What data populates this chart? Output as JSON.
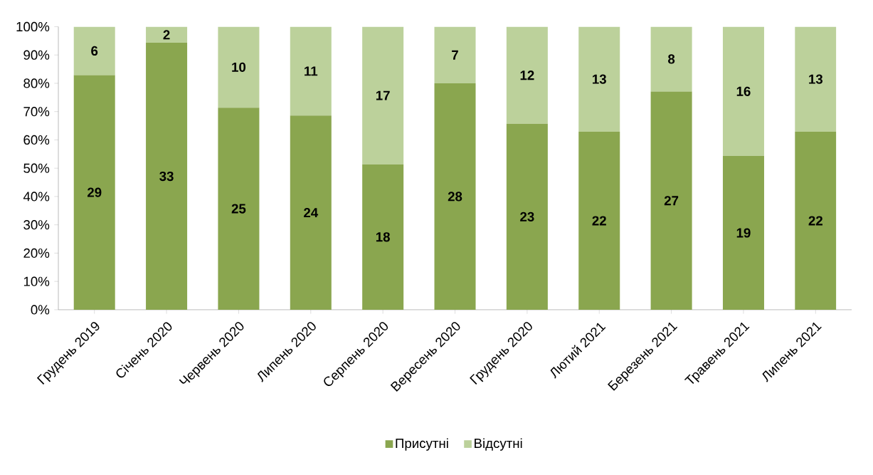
{
  "chart_data": {
    "type": "bar",
    "stacked": true,
    "categories": [
      "Грудень 2019",
      "Січень 2020",
      "Червень 2020",
      "Липень 2020",
      "Серпень 2020",
      "Вересень 2020",
      "Грудень 2020",
      "Лютий 2021",
      "Березень 2021",
      "Травень 2021",
      "Липень 2021"
    ],
    "series": [
      {
        "name": "Присутні",
        "color": "#8aa64f",
        "values": [
          82.9,
          94.3,
          71.4,
          68.6,
          51.4,
          80.0,
          65.7,
          62.9,
          77.1,
          54.3,
          62.9
        ]
      },
      {
        "name": "Відсутні",
        "color": "#bcd19b",
        "values": [
          17.1,
          5.7,
          28.6,
          31.4,
          48.6,
          20.0,
          34.3,
          37.1,
          22.9,
          45.7,
          37.1
        ]
      }
    ],
    "annotations": [
      "29",
      "33",
      "25",
      "24",
      "18",
      "28",
      "23",
      "22",
      "27",
      "19",
      "22",
      "6",
      "2",
      "10",
      "11",
      "17",
      "7",
      "12",
      "13",
      "8",
      "16",
      "13"
    ],
    "ylim": [
      0,
      100
    ],
    "yticks": [
      {
        "value": 0,
        "label": "0%"
      },
      {
        "value": 10,
        "label": "10%"
      },
      {
        "value": 20,
        "label": "20%"
      },
      {
        "value": 30,
        "label": "30%"
      },
      {
        "value": 40,
        "label": "40%"
      },
      {
        "value": 50,
        "label": "50%"
      },
      {
        "value": 60,
        "label": "60%"
      },
      {
        "value": 70,
        "label": "70%"
      },
      {
        "value": 80,
        "label": "80%"
      },
      {
        "value": 90,
        "label": "90%"
      },
      {
        "value": 100,
        "label": "100%"
      }
    ],
    "legend": "bottom",
    "grid": false
  }
}
